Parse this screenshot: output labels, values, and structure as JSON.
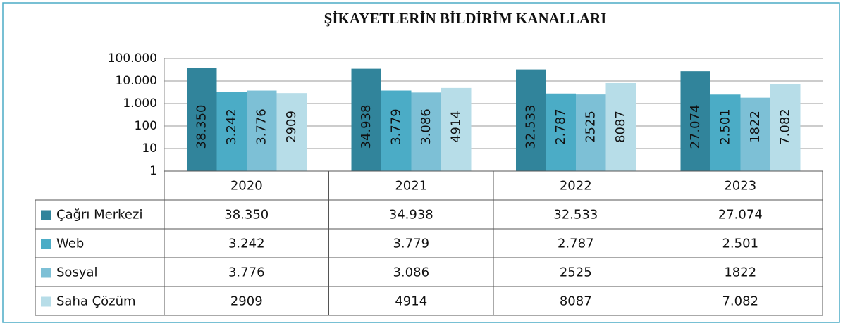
{
  "chart_data": {
    "type": "bar",
    "title": "ŞİKAYETLERİN BİLDİRİM KANALLARI",
    "categories": [
      "2020",
      "2021",
      "2022",
      "2023"
    ],
    "series": [
      {
        "name": "Çağrı Merkezi",
        "color": "#31849b",
        "values": [
          38350,
          34938,
          32533,
          27074
        ],
        "value_labels": [
          "38.350",
          "34.938",
          "32.533",
          "27.074"
        ]
      },
      {
        "name": "Web",
        "color": "#4bacc6",
        "values": [
          3242,
          3779,
          2787,
          2501
        ],
        "value_labels": [
          "3.242",
          "3.779",
          "2.787",
          "2.501"
        ]
      },
      {
        "name": "Sosyal",
        "color": "#7dc0d6",
        "values": [
          3776,
          3086,
          2525,
          1822
        ],
        "value_labels": [
          "3.776",
          "3.086",
          "2525",
          "1822"
        ]
      },
      {
        "name": "Saha Çözüm",
        "color": "#b7dde8",
        "values": [
          2909,
          4914,
          8087,
          7082
        ],
        "value_labels": [
          "2909",
          "4914",
          "8087",
          "7.082"
        ]
      }
    ],
    "ylim": [
      1,
      100000
    ],
    "yticks": [
      1,
      10,
      100,
      {
        "value": 1000,
        "label": "1.000"
      },
      {
        "value": 10000,
        "label": "10.000"
      },
      {
        "value": 100000,
        "label": "100.000"
      }
    ],
    "log_scale": true,
    "grid": true
  }
}
